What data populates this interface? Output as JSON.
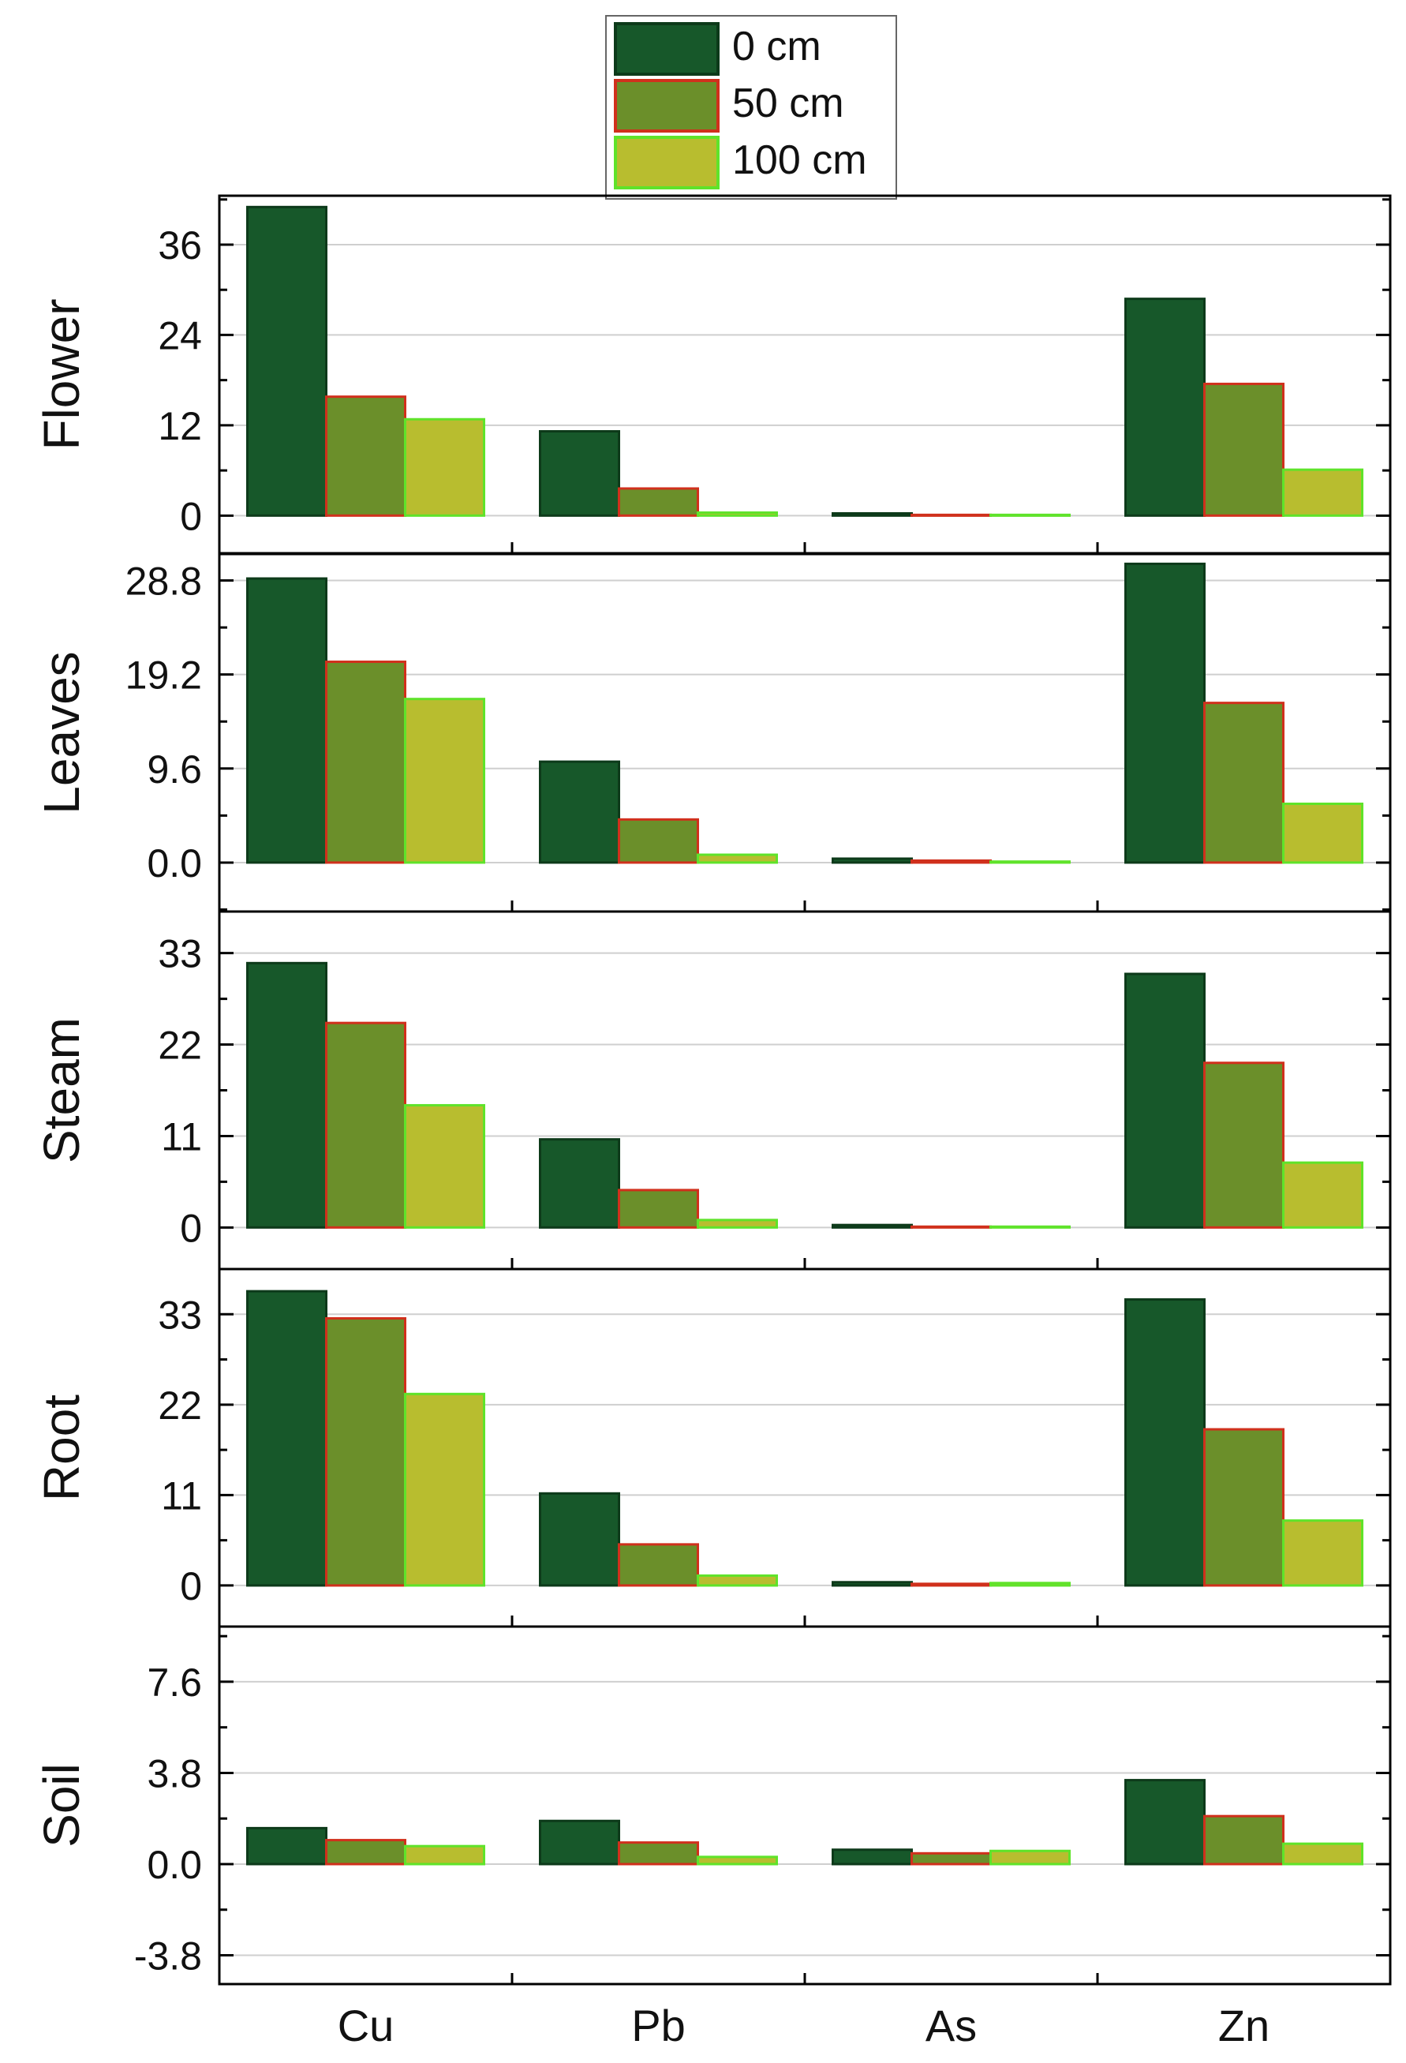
{
  "chart_data": {
    "type": "bar",
    "categories": [
      "Cu",
      "Pb",
      "As",
      "Zn"
    ],
    "legend": {
      "placement": "top-center",
      "entries": [
        {
          "name": "0 cm",
          "fill": "#17582a",
          "stroke": "#0d3a1a"
        },
        {
          "name": "50 cm",
          "fill": "#6b8f2a",
          "stroke": "#d0301c"
        },
        {
          "name": "100 cm",
          "fill": "#b8bd2f",
          "stroke": "#5fe32a"
        }
      ]
    },
    "grid": true,
    "panels": [
      {
        "ylabel": "Flower",
        "ylim": [
          -5,
          42.5
        ],
        "ticks": [
          0,
          12,
          24,
          36
        ],
        "tick_labels": [
          "0",
          "12",
          "24",
          "36"
        ],
        "series": [
          {
            "name": "0 cm",
            "values": [
              41,
              11.2,
              0.3,
              28.8
            ]
          },
          {
            "name": "50 cm",
            "values": [
              15.8,
              3.6,
              0.1,
              17.5
            ]
          },
          {
            "name": "100 cm",
            "values": [
              12.8,
              0.4,
              0.1,
              6.1
            ]
          }
        ]
      },
      {
        "ylabel": "Leaves",
        "ylim": [
          -5,
          31.5
        ],
        "ticks": [
          0.0,
          9.6,
          19.2,
          28.8
        ],
        "tick_labels": [
          "0.0",
          "9.6",
          "19.2",
          "28.8"
        ],
        "series": [
          {
            "name": "0 cm",
            "values": [
              29,
              10.3,
              0.4,
              30.5
            ]
          },
          {
            "name": "50 cm",
            "values": [
              20.5,
              4.4,
              0.2,
              16.3
            ]
          },
          {
            "name": "100 cm",
            "values": [
              16.7,
              0.8,
              0.1,
              6
            ]
          }
        ]
      },
      {
        "ylabel": "Steam",
        "ylim": [
          -5,
          38
        ],
        "ticks": [
          0,
          11,
          22,
          33
        ],
        "tick_labels": [
          "0",
          "11",
          "22",
          "33"
        ],
        "series": [
          {
            "name": "0 cm",
            "values": [
              31.8,
              10.6,
              0.3,
              30.5
            ]
          },
          {
            "name": "50 cm",
            "values": [
              24.6,
              4.5,
              0.1,
              19.8
            ]
          },
          {
            "name": "100 cm",
            "values": [
              14.7,
              0.9,
              0.1,
              7.8
            ]
          }
        ]
      },
      {
        "ylabel": "Root",
        "ylim": [
          -5,
          38.5
        ],
        "ticks": [
          0,
          11,
          22,
          33
        ],
        "tick_labels": [
          "0",
          "11",
          "22",
          "33"
        ],
        "series": [
          {
            "name": "0 cm",
            "values": [
              35.8,
              11.2,
              0.4,
              34.8
            ]
          },
          {
            "name": "50 cm",
            "values": [
              32.5,
              5,
              0.2,
              19
            ]
          },
          {
            "name": "100 cm",
            "values": [
              23.3,
              1.2,
              0.3,
              7.9
            ]
          }
        ]
      },
      {
        "ylabel": "Soil",
        "ylim": [
          -5,
          9.9
        ],
        "ticks": [
          -3.8,
          0.0,
          3.8,
          7.6
        ],
        "tick_labels": [
          "-3.8",
          "0.0",
          "3.8",
          "7.6"
        ],
        "series": [
          {
            "name": "0 cm",
            "values": [
              1.5,
              1.8,
              0.6,
              3.5
            ]
          },
          {
            "name": "50 cm",
            "values": [
              1,
              0.9,
              0.45,
              2
            ]
          },
          {
            "name": "100 cm",
            "values": [
              0.75,
              0.3,
              0.55,
              0.85
            ]
          }
        ]
      }
    ]
  }
}
